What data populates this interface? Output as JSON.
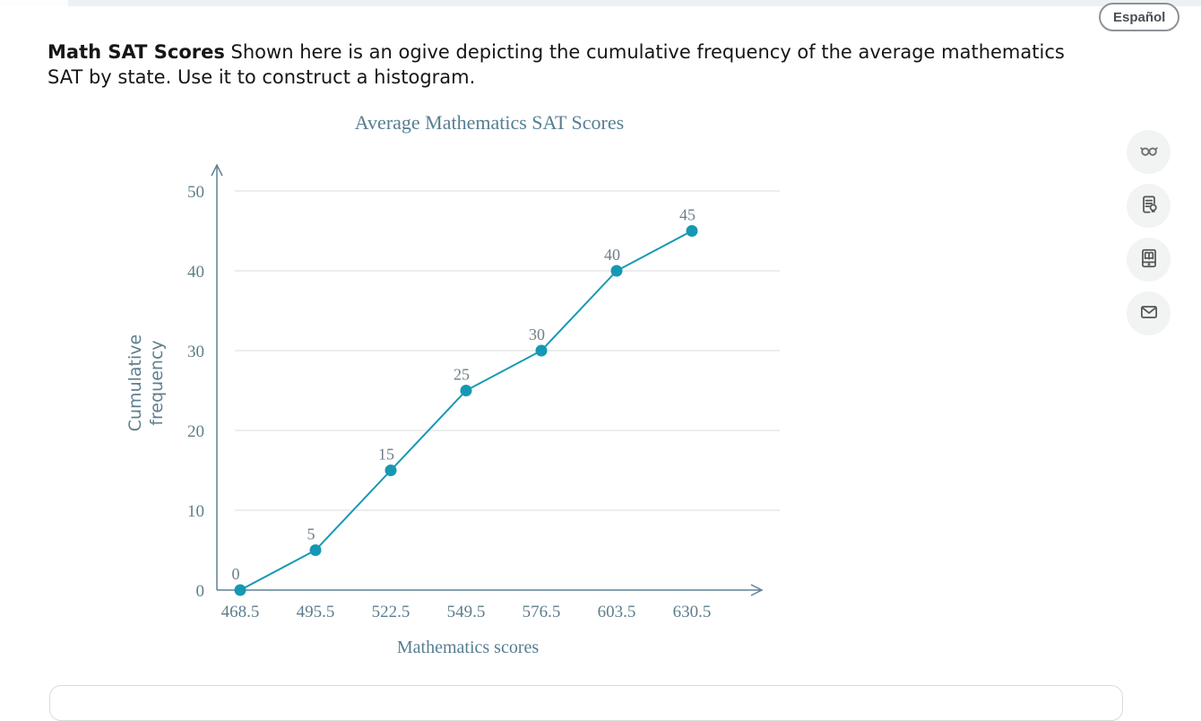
{
  "top": {
    "language_button_label": "Español"
  },
  "problem": {
    "title": "Math SAT Scores",
    "description": "Shown here is an ogive depicting the cumulative frequency of the average mathematics SAT by state. Use it to construct a histogram."
  },
  "tools": {
    "items": [
      "reading-glasses-icon",
      "explanation-sheet-icon",
      "ebook-reader-icon",
      "envelope-icon"
    ]
  },
  "chart_data": {
    "type": "line",
    "title": "Average Mathematics SAT Scores",
    "xlabel": "Mathematics scores",
    "ylabel": "Cumulative frequency",
    "x": [
      468.5,
      495.5,
      522.5,
      549.5,
      576.5,
      603.5,
      630.5
    ],
    "values": [
      0,
      5,
      15,
      25,
      30,
      40,
      45
    ],
    "point_labels": [
      "0",
      "5",
      "15",
      "25",
      "30",
      "40",
      "45"
    ],
    "x_tick_labels": [
      "468.5",
      "495.5",
      "522.5",
      "549.5",
      "576.5",
      "603.5",
      "630.5"
    ],
    "y_ticks": [
      0,
      10,
      20,
      30,
      40,
      50
    ],
    "ylim": [
      0,
      50
    ],
    "grid": "horizontal",
    "legend": "none",
    "line_color": "#1598b3",
    "axis_color": "#5e8094",
    "tick_color": "#5e7d8d",
    "point_label_color": "#6f7d86",
    "grid_color": "#dadbdc",
    "title_color": "#567e92"
  }
}
